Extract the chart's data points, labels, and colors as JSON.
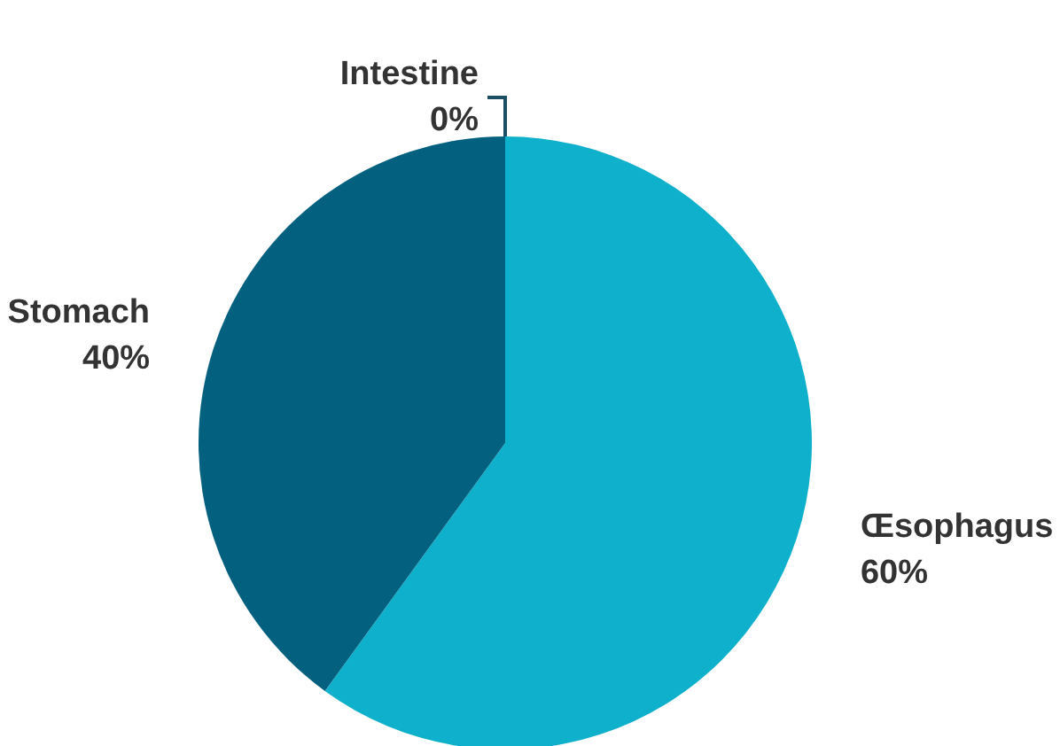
{
  "chart_data": {
    "type": "pie",
    "categories": [
      "Œsophagus",
      "Stomach",
      "Intestine"
    ],
    "values": [
      60,
      40,
      0
    ],
    "value_labels": [
      "60%",
      "40%",
      "0%"
    ],
    "colors": [
      "#0fb0cc",
      "#04607f",
      "#1d4e63"
    ],
    "legend": false
  }
}
